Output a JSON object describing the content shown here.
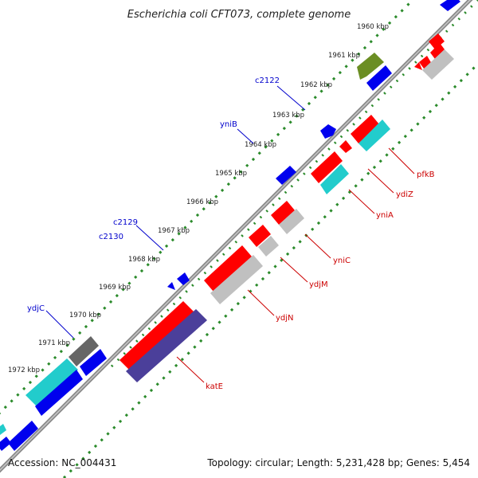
{
  "title": "Escherichia coli CFT073, complete genome",
  "footer": {
    "accession": "Accession: NC_004431",
    "summary": "Topology: circular; Length: 5,231,428 bp; Genes: 5,454"
  },
  "colors": {
    "backbone": "#8a8a8a",
    "ticks": "#2a8a2a",
    "label_forward": "#0000cc",
    "label_reverse": "#cc0000",
    "cds_red": "#ff0000",
    "cds_blue": "#0000ee",
    "cds_cyan": "#22cccc",
    "cds_gray": "#c0c0c0",
    "cds_olive": "#6b8e23",
    "cds_navy": "#4b3f9a",
    "cds_darkgray": "#666666"
  },
  "scale_labels": [
    "1960 kbp",
    "1961 kbp",
    "1962 kbp",
    "1963 kbp",
    "1964 kbp",
    "1965 kbp",
    "1966 kbp",
    "1967 kbp",
    "1968 kbp",
    "1969 kbp",
    "1970 kbp",
    "1971 kbp",
    "1972 kbp"
  ],
  "gene_labels_forward": [
    "c2122",
    "yniB",
    "c2129",
    "c2130",
    "ydjC"
  ],
  "gene_labels_reverse": [
    "pfkB",
    "ydiZ",
    "yniA",
    "yniC",
    "ydjM",
    "ydjN",
    "katE"
  ]
}
